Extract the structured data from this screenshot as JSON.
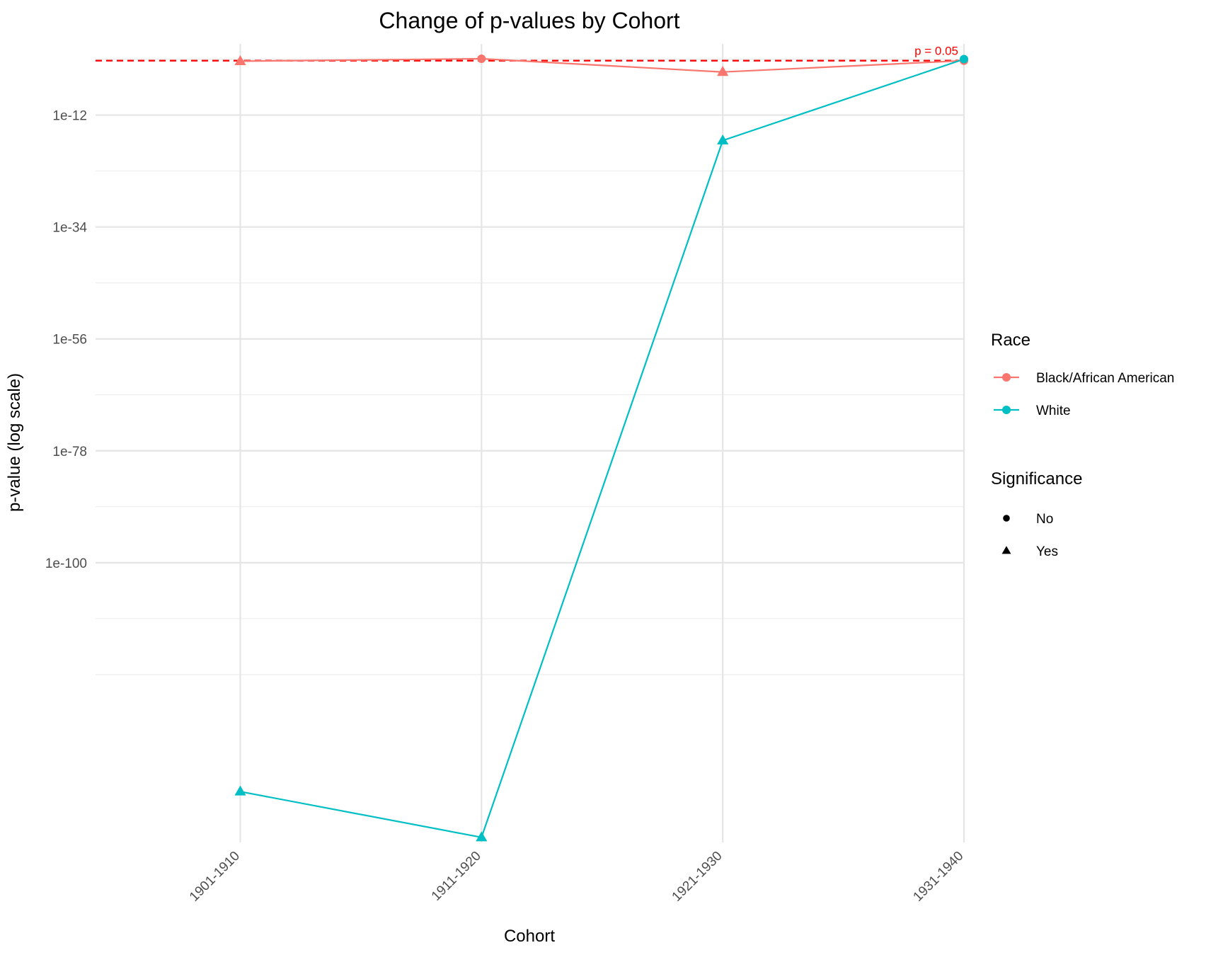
{
  "chart_data": {
    "type": "line",
    "title": "Change of p-values by Cohort",
    "xlabel": "Cohort",
    "ylabel": "p-value (log scale)",
    "y_scale": "log10",
    "ylim": [
      1e-155,
      100.0
    ],
    "y_ticks": [
      {
        "value": 1e-12,
        "label": "1e-12"
      },
      {
        "value": 1e-34,
        "label": "1e-34"
      },
      {
        "value": 1e-56,
        "label": "1e-56"
      },
      {
        "value": 1e-78,
        "label": "1e-78"
      },
      {
        "value": 1e-100,
        "label": "1e-100"
      }
    ],
    "y_minor_ticks": [
      0.1,
      1e-23,
      1e-45,
      1e-67,
      1e-89,
      1e-111,
      1e-122
    ],
    "categories": [
      "1901-1910",
      "1911-1920",
      "1921-1930",
      "1931-1940"
    ],
    "grid": true,
    "series": [
      {
        "name": "Black/African American",
        "color": "#F8766D",
        "values": [
          0.04,
          0.12,
          0.0003,
          0.05
        ],
        "significance": [
          "Yes",
          "No",
          "Yes",
          "No"
        ]
      },
      {
        "name": "White",
        "color": "#00BFC4",
        "values": [
          1e-145,
          1e-154,
          1e-17,
          0.1
        ],
        "significance": [
          "Yes",
          "Yes",
          "Yes",
          "No"
        ]
      }
    ],
    "reference_line": {
      "value": 0.05,
      "label": "p = 0.05",
      "color": "#FF0000",
      "style": "dashed"
    },
    "legend": {
      "placement": "right",
      "race_title": "Race",
      "significance_title": "Significance",
      "significance_entries": [
        {
          "label": "No",
          "shape": "circle"
        },
        {
          "label": "Yes",
          "shape": "triangle"
        }
      ]
    }
  }
}
